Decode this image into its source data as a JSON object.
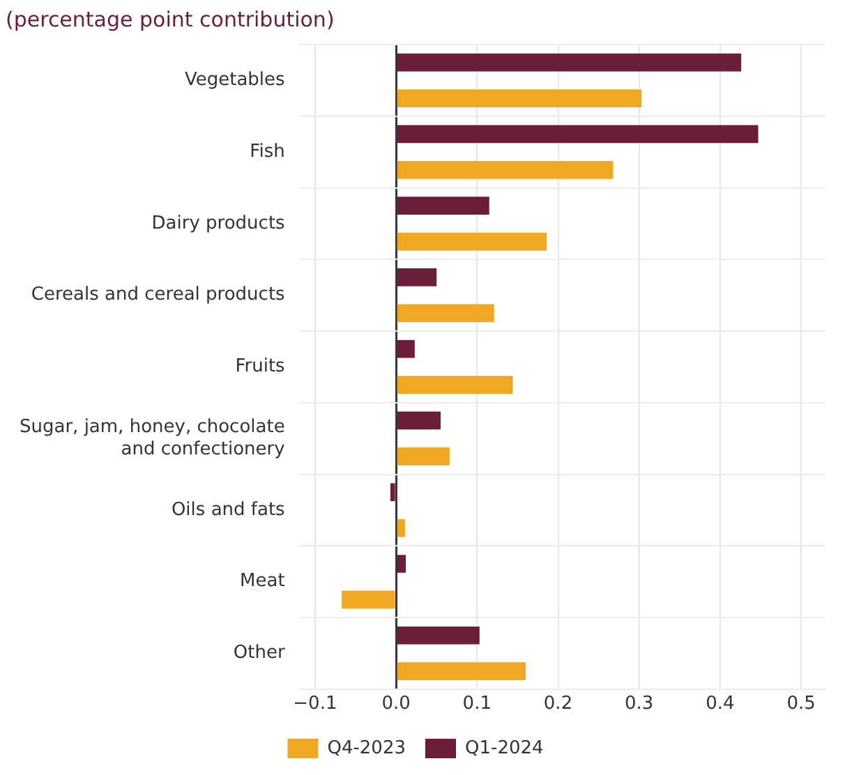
{
  "chart_data": {
    "type": "bar",
    "orientation": "horizontal",
    "title": "(percentage point contribution)",
    "categories": [
      "Vegetables",
      "Fish",
      "Dairy products",
      "Cereals and cereal products",
      "Fruits",
      "Sugar, jam, honey, chocolate and confectionery",
      "Oils and fats",
      "Meat",
      "Other"
    ],
    "series": [
      {
        "name": "Q4-2023",
        "color": "#f0a824",
        "values": [
          0.303,
          0.268,
          0.186,
          0.121,
          0.144,
          0.066,
          0.011,
          -0.067,
          0.16
        ]
      },
      {
        "name": "Q1-2024",
        "color": "#6b1d3a",
        "values": [
          0.426,
          0.447,
          0.115,
          0.05,
          0.023,
          0.055,
          -0.007,
          0.012,
          0.103
        ]
      }
    ],
    "xlim": [
      -0.12,
      0.53
    ],
    "xticks": [
      {
        "value": -0.1,
        "label": "−0.1"
      },
      {
        "value": 0,
        "label": "0.0"
      },
      0.1,
      0.2,
      0.3,
      0.4,
      0.5
    ],
    "grid": true,
    "legend": "bottom"
  }
}
